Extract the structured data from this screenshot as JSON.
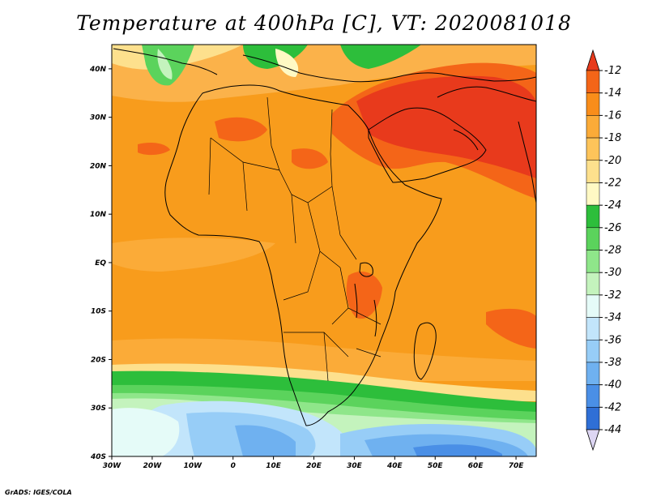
{
  "title": "Temperature at 400hPa [C], VT: 2020081018",
  "credit": "GrADS: IGES/COLA",
  "map": {
    "lon_labels": [
      "30W",
      "20W",
      "10W",
      "0",
      "10E",
      "20E",
      "30E",
      "40E",
      "50E",
      "60E",
      "70E"
    ],
    "lat_labels": [
      "40N",
      "30N",
      "20N",
      "10N",
      "EQ",
      "10S",
      "20S",
      "30S",
      "40S"
    ],
    "lon_range": [
      -30,
      75
    ],
    "lat_range": [
      -40,
      45
    ]
  },
  "colorbar": {
    "labels": [
      "-12",
      "-14",
      "-16",
      "-18",
      "-20",
      "-22",
      "-24",
      "-26",
      "-28",
      "-30",
      "-32",
      "-34",
      "-36",
      "-38",
      "-40",
      "-42",
      "-44"
    ],
    "colors": [
      "#e83a1c",
      "#f46518",
      "#f98d1a",
      "#fbab38",
      "#fdc45a",
      "#fde08d",
      "#fff9c4",
      "#2dbe3b",
      "#5bd35c",
      "#8fe68a",
      "#c4f3bd",
      "#e5fbf8",
      "#c2e5fb",
      "#97cdf7",
      "#6fb1f0",
      "#4a8fe6",
      "#2f6fd6",
      "#1f4cbc",
      "#142f96",
      "#ddd6f3"
    ]
  },
  "colors": {
    "land_outline": "#000000",
    "ocean_fill": "#f7961b"
  }
}
